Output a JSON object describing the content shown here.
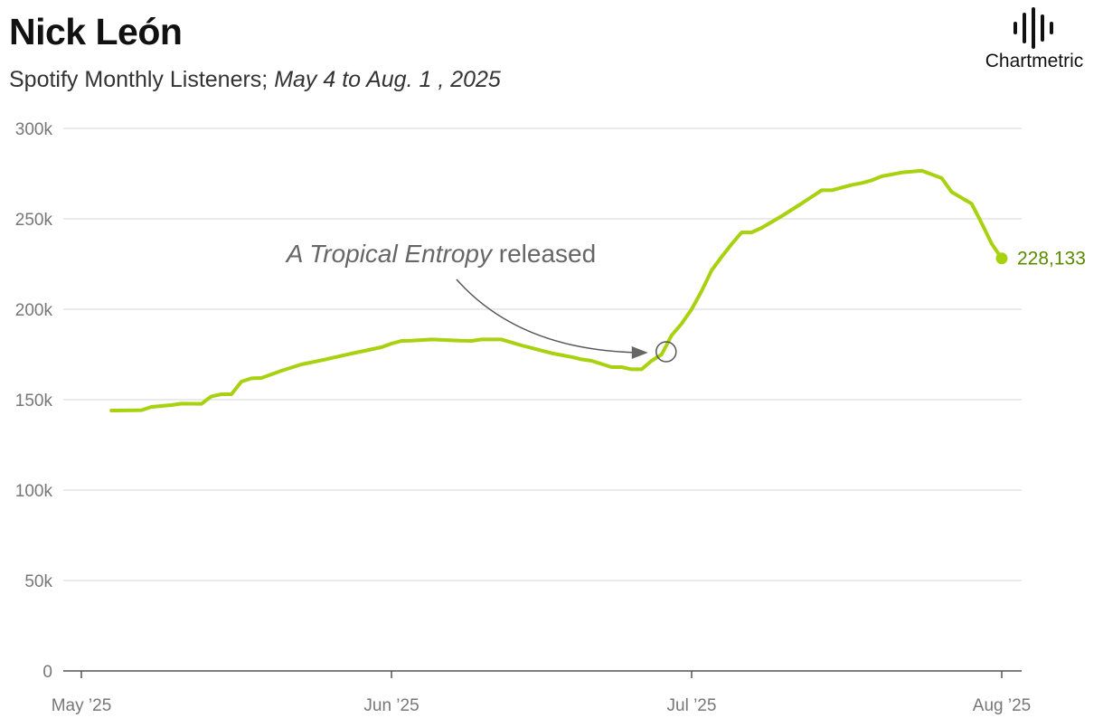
{
  "header": {
    "title": "Nick León",
    "subtitle_plain": "Spotify Monthly Listeners; ",
    "subtitle_dates": "May 4 to Aug. 1 , 2025"
  },
  "logo": {
    "icon": "soundwave-icon",
    "brand": "Chartmetric"
  },
  "chart_data": {
    "type": "line",
    "title": "Nick León",
    "subtitle": "Spotify Monthly Listeners; May 4 to Aug. 1 , 2025",
    "ylim": [
      0,
      300000
    ],
    "yticks": [
      0,
      50000,
      100000,
      150000,
      200000,
      250000,
      300000
    ],
    "ytick_labels": [
      "0",
      "50k",
      "100k",
      "150k",
      "200k",
      "250k",
      "300k"
    ],
    "xlim": [
      "2025-05-01",
      "2025-08-01"
    ],
    "xticks": [
      "2025-05-01",
      "2025-06-01",
      "2025-07-01",
      "2025-08-01"
    ],
    "xtick_labels": [
      "May ’25",
      "Jun ’25",
      "Jul ’25",
      "Aug ’25"
    ],
    "grid": true,
    "color": "#a8d10f",
    "series": [
      {
        "points": [
          [
            "2025-05-04",
            144000
          ],
          [
            "2025-05-07",
            144200
          ],
          [
            "2025-05-08",
            146000
          ],
          [
            "2025-05-10",
            147000
          ],
          [
            "2025-05-11",
            147800
          ],
          [
            "2025-05-13",
            147700
          ],
          [
            "2025-05-14",
            151800
          ],
          [
            "2025-05-15",
            153000
          ],
          [
            "2025-05-16",
            153000
          ],
          [
            "2025-05-17",
            160000
          ],
          [
            "2025-05-18",
            161800
          ],
          [
            "2025-05-19",
            162000
          ],
          [
            "2025-05-21",
            166000
          ],
          [
            "2025-05-23",
            169500
          ],
          [
            "2025-05-25",
            171800
          ],
          [
            "2025-05-28",
            175500
          ],
          [
            "2025-05-31",
            179000
          ],
          [
            "2025-06-01",
            181000
          ],
          [
            "2025-06-02",
            182500
          ],
          [
            "2025-06-03",
            182600
          ],
          [
            "2025-06-05",
            183300
          ],
          [
            "2025-06-08",
            182600
          ],
          [
            "2025-06-09",
            182500
          ],
          [
            "2025-06-10",
            183300
          ],
          [
            "2025-06-12",
            183300
          ],
          [
            "2025-06-14",
            180000
          ],
          [
            "2025-06-17",
            175700
          ],
          [
            "2025-06-19",
            173600
          ],
          [
            "2025-06-20",
            172300
          ],
          [
            "2025-06-21",
            171500
          ],
          [
            "2025-06-23",
            168000
          ],
          [
            "2025-06-24",
            168000
          ],
          [
            "2025-06-25",
            166800
          ],
          [
            "2025-06-26",
            166800
          ],
          [
            "2025-06-27",
            171500
          ],
          [
            "2025-06-28",
            175000
          ],
          [
            "2025-06-29",
            185500
          ],
          [
            "2025-06-30",
            192000
          ],
          [
            "2025-07-01",
            200000
          ],
          [
            "2025-07-02",
            210000
          ],
          [
            "2025-07-03",
            221500
          ],
          [
            "2025-07-04",
            229000
          ],
          [
            "2025-07-05",
            236000
          ],
          [
            "2025-07-06",
            242500
          ],
          [
            "2025-07-07",
            242500
          ],
          [
            "2025-07-08",
            245000
          ],
          [
            "2025-07-10",
            251500
          ],
          [
            "2025-07-12",
            258500
          ],
          [
            "2025-07-14",
            265800
          ],
          [
            "2025-07-15",
            265800
          ],
          [
            "2025-07-17",
            268700
          ],
          [
            "2025-07-18",
            269800
          ],
          [
            "2025-07-19",
            271300
          ],
          [
            "2025-07-20",
            273500
          ],
          [
            "2025-07-22",
            275600
          ],
          [
            "2025-07-24",
            276600
          ],
          [
            "2025-07-26",
            272500
          ],
          [
            "2025-07-27",
            264800
          ],
          [
            "2025-07-29",
            258300
          ],
          [
            "2025-07-30",
            247500
          ],
          [
            "2025-07-31",
            236200
          ],
          [
            "2025-08-01",
            228133
          ]
        ]
      }
    ],
    "annotations": [
      {
        "text_italic": "A Tropical Entropy",
        "text_rest": " released",
        "date": "2025-06-28",
        "value": 177000
      }
    ],
    "end_label": "228,133"
  }
}
